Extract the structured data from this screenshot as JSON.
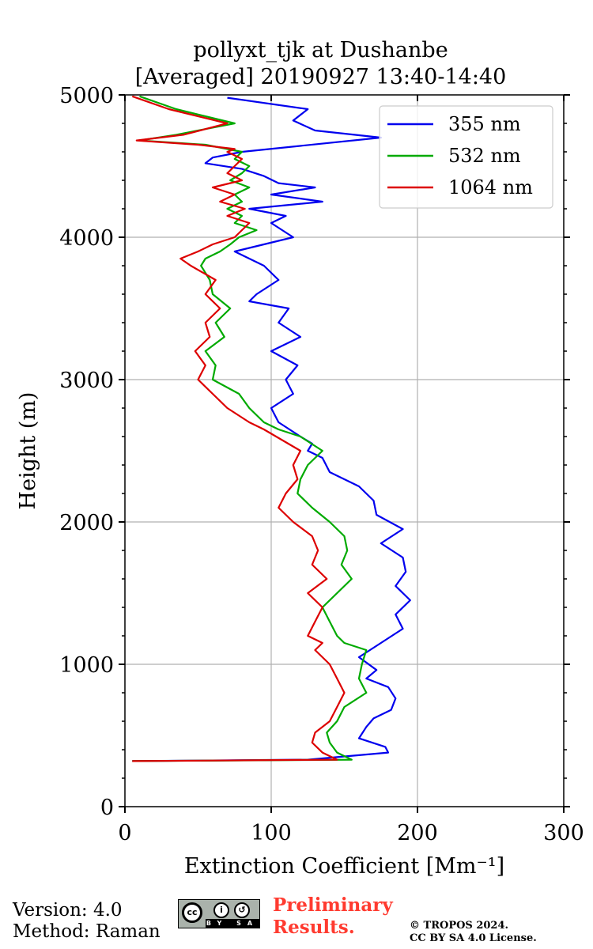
{
  "chart_data": {
    "type": "line",
    "title": [
      "pollyxt_tjk at Dushanbe",
      "[Averaged] 20190927 13:40-14:40"
    ],
    "xlabel": "Extinction Coefficient [Mm⁻¹]",
    "ylabel": "Height (m)",
    "xlim": [
      0,
      300
    ],
    "ylim": [
      0,
      5000
    ],
    "xticks": [
      0,
      100,
      200,
      300
    ],
    "yticks": [
      0,
      1000,
      2000,
      3000,
      4000,
      5000
    ],
    "grid": true,
    "legend_position": "top-right",
    "series": [
      {
        "name": "355 nm",
        "color": "#0000ee",
        "x": [
          5,
          125,
          180,
          178,
          160,
          165,
          170,
          182,
          185,
          180,
          165,
          172,
          160,
          175,
          190,
          185,
          195,
          185,
          192,
          190,
          175,
          190,
          172,
          170,
          160,
          140,
          135,
          125,
          128,
          120,
          105,
          100,
          115,
          110,
          118,
          100,
          120,
          105,
          112,
          85,
          90,
          105,
          95,
          75,
          115,
          100,
          110,
          85,
          135,
          100,
          130,
          105,
          95,
          80,
          55,
          60,
          80,
          175,
          130,
          115,
          125,
          70
        ],
        "y": [
          320,
          330,
          380,
          420,
          480,
          560,
          620,
          680,
          760,
          840,
          900,
          960,
          1050,
          1150,
          1250,
          1350,
          1450,
          1550,
          1650,
          1750,
          1850,
          1950,
          2050,
          2150,
          2250,
          2350,
          2450,
          2500,
          2550,
          2600,
          2700,
          2800,
          2900,
          3000,
          3100,
          3200,
          3300,
          3400,
          3500,
          3550,
          3600,
          3700,
          3800,
          3900,
          4000,
          4100,
          4150,
          4200,
          4250,
          4300,
          4350,
          4380,
          4430,
          4480,
          4520,
          4560,
          4600,
          4700,
          4750,
          4820,
          4900,
          4980
        ]
      },
      {
        "name": "532 nm",
        "color": "#00aa00",
        "x": [
          5,
          155,
          145,
          140,
          138,
          145,
          150,
          165,
          160,
          162,
          165,
          150,
          145,
          140,
          135,
          145,
          155,
          148,
          152,
          150,
          140,
          128,
          118,
          120,
          125,
          135,
          120,
          105,
          95,
          85,
          78,
          60,
          62,
          55,
          68,
          62,
          72,
          60,
          58,
          52,
          55,
          65,
          72,
          78,
          90,
          75,
          80,
          70,
          80,
          75,
          85,
          72,
          80,
          85,
          75,
          80,
          55,
          10,
          35,
          55,
          75,
          35,
          10
        ],
        "y": [
          320,
          330,
          380,
          450,
          520,
          600,
          700,
          800,
          900,
          1000,
          1100,
          1150,
          1200,
          1300,
          1400,
          1500,
          1600,
          1700,
          1800,
          1900,
          2000,
          2100,
          2200,
          2300,
          2400,
          2500,
          2600,
          2650,
          2700,
          2800,
          2900,
          3000,
          3100,
          3200,
          3300,
          3400,
          3500,
          3600,
          3700,
          3800,
          3850,
          3900,
          3950,
          4000,
          4050,
          4100,
          4150,
          4200,
          4250,
          4300,
          4350,
          4400,
          4450,
          4500,
          4550,
          4600,
          4650,
          4680,
          4720,
          4760,
          4800,
          4900,
          4990
        ]
      },
      {
        "name": "1064 nm",
        "color": "#dd0000",
        "x": [
          5,
          145,
          135,
          128,
          130,
          140,
          145,
          150,
          145,
          140,
          130,
          135,
          125,
          130,
          135,
          125,
          138,
          128,
          132,
          128,
          115,
          105,
          110,
          118,
          115,
          120,
          95,
          85,
          70,
          60,
          50,
          55,
          48,
          58,
          55,
          65,
          55,
          62,
          45,
          38,
          50,
          60,
          75,
          80,
          85,
          70,
          82,
          65,
          75,
          60,
          80,
          70,
          75,
          80,
          70,
          75,
          50,
          8,
          40,
          55,
          70,
          30,
          5
        ],
        "y": [
          320,
          330,
          380,
          450,
          520,
          600,
          700,
          800,
          900,
          1000,
          1100,
          1150,
          1200,
          1300,
          1400,
          1500,
          1600,
          1700,
          1800,
          1900,
          2000,
          2100,
          2200,
          2300,
          2400,
          2500,
          2650,
          2700,
          2800,
          2900,
          3000,
          3100,
          3200,
          3300,
          3400,
          3500,
          3600,
          3700,
          3800,
          3850,
          3900,
          3950,
          4000,
          4050,
          4100,
          4150,
          4200,
          4250,
          4300,
          4350,
          4400,
          4450,
          4500,
          4550,
          4600,
          4620,
          4650,
          4680,
          4720,
          4760,
          4800,
          4900,
          4990
        ]
      }
    ]
  },
  "footer": {
    "version": "Version: 4.0",
    "method": "Method: Raman",
    "license_badge": {
      "circle": "cc",
      "by": "BY",
      "sa": "SA"
    },
    "preliminary_line1": "Preliminary",
    "preliminary_line2": "Results.",
    "copyright_line1": "© TROPOS 2024.",
    "copyright_line2": "CC BY SA 4.0 License."
  }
}
